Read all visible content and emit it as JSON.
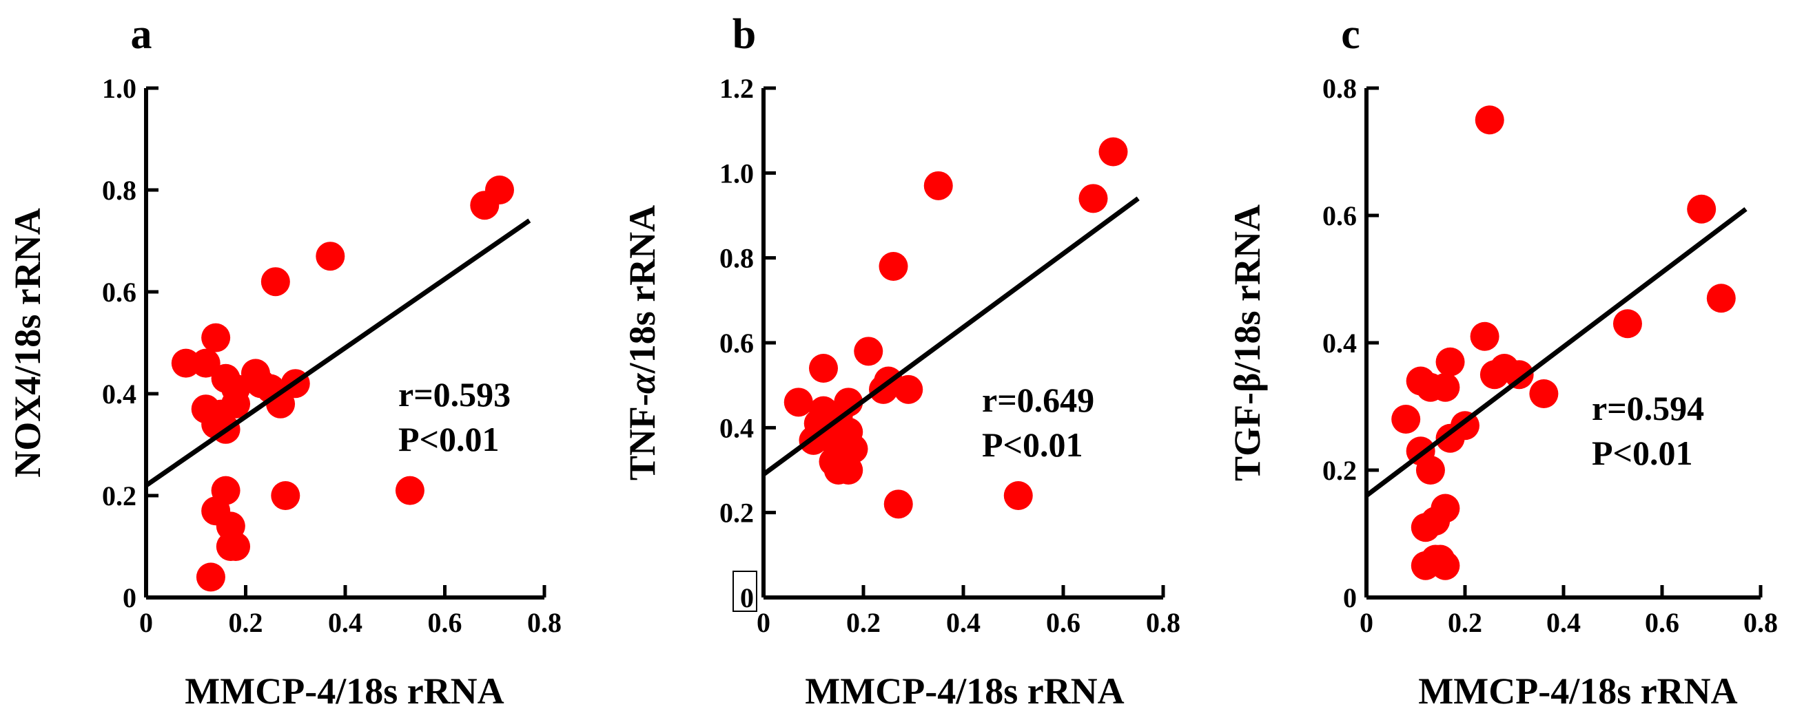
{
  "chart_data": [
    {
      "type": "scatter",
      "panel_label": "a",
      "xlabel": "MMCP-4/18s rRNA",
      "ylabel": "NOX4/18s rRNA",
      "xlim": [
        0,
        0.8
      ],
      "ylim": [
        0,
        1.0
      ],
      "xticks": [
        "0",
        "0.2",
        "0.4",
        "0.6",
        "0.8"
      ],
      "yticks": [
        "0",
        "0.2",
        "0.4",
        "0.6",
        "0.8",
        "1.0"
      ],
      "annotation_r": "r=0.593",
      "annotation_p": "P<0.01",
      "fit_line": {
        "x": [
          0,
          0.77
        ],
        "y": [
          0.22,
          0.74
        ]
      },
      "points": [
        {
          "x": 0.08,
          "y": 0.46
        },
        {
          "x": 0.12,
          "y": 0.46
        },
        {
          "x": 0.12,
          "y": 0.37
        },
        {
          "x": 0.14,
          "y": 0.51
        },
        {
          "x": 0.14,
          "y": 0.34
        },
        {
          "x": 0.15,
          "y": 0.36
        },
        {
          "x": 0.16,
          "y": 0.33
        },
        {
          "x": 0.16,
          "y": 0.43
        },
        {
          "x": 0.18,
          "y": 0.41
        },
        {
          "x": 0.18,
          "y": 0.38
        },
        {
          "x": 0.22,
          "y": 0.44
        },
        {
          "x": 0.23,
          "y": 0.42
        },
        {
          "x": 0.25,
          "y": 0.41
        },
        {
          "x": 0.27,
          "y": 0.38
        },
        {
          "x": 0.26,
          "y": 0.62
        },
        {
          "x": 0.3,
          "y": 0.42
        },
        {
          "x": 0.37,
          "y": 0.67
        },
        {
          "x": 0.28,
          "y": 0.2
        },
        {
          "x": 0.14,
          "y": 0.17
        },
        {
          "x": 0.16,
          "y": 0.21
        },
        {
          "x": 0.17,
          "y": 0.14
        },
        {
          "x": 0.17,
          "y": 0.1
        },
        {
          "x": 0.18,
          "y": 0.1
        },
        {
          "x": 0.13,
          "y": 0.04
        },
        {
          "x": 0.53,
          "y": 0.21
        },
        {
          "x": 0.68,
          "y": 0.77
        },
        {
          "x": 0.71,
          "y": 0.8
        }
      ]
    },
    {
      "type": "scatter",
      "panel_label": "b",
      "xlabel": "MMCP-4/18s rRNA",
      "ylabel_prefix": "TNF-",
      "ylabel_symbol": "α",
      "ylabel_suffix": "/18s rRNA",
      "xlim": [
        0,
        0.8
      ],
      "ylim": [
        0,
        1.2
      ],
      "xticks": [
        "0",
        "0.2",
        "0.4",
        "0.6",
        "0.8"
      ],
      "yticks": [
        "0",
        "0.2",
        "0.4",
        "0.6",
        "0.8",
        "1.0",
        "1.2"
      ],
      "annotation_r": "r=0.649",
      "annotation_p": "P<0.01",
      "fit_line": {
        "x": [
          0,
          0.75
        ],
        "y": [
          0.29,
          0.94
        ]
      },
      "points": [
        {
          "x": 0.07,
          "y": 0.46
        },
        {
          "x": 0.1,
          "y": 0.37
        },
        {
          "x": 0.11,
          "y": 0.41
        },
        {
          "x": 0.12,
          "y": 0.44
        },
        {
          "x": 0.12,
          "y": 0.54
        },
        {
          "x": 0.13,
          "y": 0.4
        },
        {
          "x": 0.14,
          "y": 0.37
        },
        {
          "x": 0.14,
          "y": 0.32
        },
        {
          "x": 0.15,
          "y": 0.43
        },
        {
          "x": 0.15,
          "y": 0.3
        },
        {
          "x": 0.16,
          "y": 0.36
        },
        {
          "x": 0.16,
          "y": 0.34
        },
        {
          "x": 0.17,
          "y": 0.3
        },
        {
          "x": 0.17,
          "y": 0.39
        },
        {
          "x": 0.17,
          "y": 0.46
        },
        {
          "x": 0.18,
          "y": 0.35
        },
        {
          "x": 0.21,
          "y": 0.58
        },
        {
          "x": 0.24,
          "y": 0.49
        },
        {
          "x": 0.25,
          "y": 0.51
        },
        {
          "x": 0.26,
          "y": 0.78
        },
        {
          "x": 0.29,
          "y": 0.49
        },
        {
          "x": 0.27,
          "y": 0.22
        },
        {
          "x": 0.35,
          "y": 0.97
        },
        {
          "x": 0.51,
          "y": 0.24
        },
        {
          "x": 0.66,
          "y": 0.94
        },
        {
          "x": 0.7,
          "y": 1.05
        }
      ]
    },
    {
      "type": "scatter",
      "panel_label": "c",
      "xlabel": "MMCP-4/18s rRNA",
      "ylabel": "TGF-β/18s rRNA",
      "xlim": [
        0,
        0.8
      ],
      "ylim": [
        0,
        0.8
      ],
      "xticks": [
        "0",
        "0.2",
        "0.4",
        "0.6",
        "0.8"
      ],
      "yticks": [
        "0",
        "0.2",
        "0.4",
        "0.6",
        "0.8"
      ],
      "annotation_r": "r=0.594",
      "annotation_p": "P<0.01",
      "fit_line": {
        "x": [
          0,
          0.77
        ],
        "y": [
          0.16,
          0.61
        ]
      },
      "points": [
        {
          "x": 0.08,
          "y": 0.28
        },
        {
          "x": 0.11,
          "y": 0.23
        },
        {
          "x": 0.11,
          "y": 0.34
        },
        {
          "x": 0.12,
          "y": 0.11
        },
        {
          "x": 0.12,
          "y": 0.05
        },
        {
          "x": 0.13,
          "y": 0.33
        },
        {
          "x": 0.13,
          "y": 0.2
        },
        {
          "x": 0.14,
          "y": 0.06
        },
        {
          "x": 0.14,
          "y": 0.12
        },
        {
          "x": 0.15,
          "y": 0.06
        },
        {
          "x": 0.16,
          "y": 0.14
        },
        {
          "x": 0.16,
          "y": 0.05
        },
        {
          "x": 0.16,
          "y": 0.33
        },
        {
          "x": 0.17,
          "y": 0.37
        },
        {
          "x": 0.17,
          "y": 0.25
        },
        {
          "x": 0.2,
          "y": 0.27
        },
        {
          "x": 0.24,
          "y": 0.41
        },
        {
          "x": 0.25,
          "y": 0.75
        },
        {
          "x": 0.26,
          "y": 0.35
        },
        {
          "x": 0.28,
          "y": 0.36
        },
        {
          "x": 0.31,
          "y": 0.35
        },
        {
          "x": 0.36,
          "y": 0.32
        },
        {
          "x": 0.53,
          "y": 0.43
        },
        {
          "x": 0.68,
          "y": 0.61
        },
        {
          "x": 0.72,
          "y": 0.47
        }
      ]
    }
  ]
}
